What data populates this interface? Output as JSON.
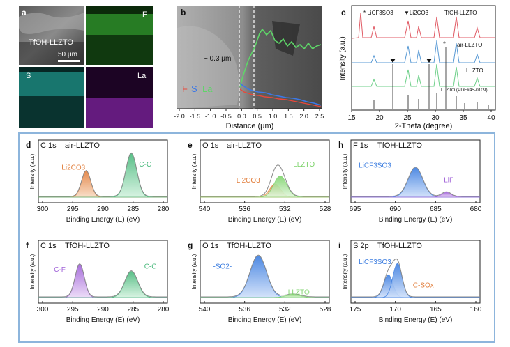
{
  "panel_a": {
    "letter": "a",
    "sample_label": "TfOH-LLZTO",
    "scale_bar": "50 μm",
    "maps": [
      {
        "element": "F",
        "color": "#3fbf3a"
      },
      {
        "element": "S",
        "color": "#29c6b8"
      },
      {
        "element": "La",
        "color": "#a030c8"
      }
    ]
  },
  "panel_b": {
    "letter": "b",
    "annotation": "~ 0.3 μm",
    "legend": [
      {
        "label": "F",
        "color": "#e8483a"
      },
      {
        "label": "S",
        "color": "#3c78e6"
      },
      {
        "label": "La",
        "color": "#5ed668"
      }
    ],
    "xlabel": "Distance (μm)",
    "xticks": [
      "-2.0",
      "-1.5",
      "-1.0",
      "-0.5",
      "0.0",
      "0.5",
      "1.0",
      "1.5",
      "2.0",
      "2.5"
    ]
  },
  "panel_c": {
    "letter": "c",
    "legend_star": "* LiCF3SO3",
    "legend_tri": "▼Li2CO3",
    "labels": [
      "TfOH-LLZTO",
      "air-LLZTO",
      "LLZTO",
      "LLZTO (PDF#45-0109)"
    ],
    "ylabel": "Intensity (a.u.)",
    "xlabel": "2-Theta (degree)",
    "xticks": [
      "15",
      "20",
      "25",
      "30",
      "35",
      "40"
    ]
  },
  "xps": {
    "ylabel": "Intensity (a.u.)",
    "xlabel": "Binding Energy (E) (eV)",
    "panels": [
      {
        "letter": "d",
        "core": "C 1s",
        "sample": "air-LLZTO",
        "xticks": [
          "300",
          "295",
          "290",
          "285",
          "280"
        ],
        "peaks": [
          "Li2CO3",
          "C-C"
        ]
      },
      {
        "letter": "e",
        "core": "O 1s",
        "sample": "air-LLZTO",
        "xticks": [
          "540",
          "536",
          "532",
          "528"
        ],
        "peaks": [
          "Li2CO3",
          "LLZTO"
        ]
      },
      {
        "letter": "h",
        "core": "F 1s",
        "sample": "TfOH-LLZTO",
        "xticks": [
          "695",
          "690",
          "685",
          "680"
        ],
        "peaks": [
          "LiCF3SO3",
          "LiF"
        ]
      },
      {
        "letter": "f",
        "core": "C 1s",
        "sample": "TfOH-LLZTO",
        "xticks": [
          "300",
          "295",
          "290",
          "285",
          "280"
        ],
        "peaks": [
          "C-F",
          "C-C"
        ]
      },
      {
        "letter": "g",
        "core": "O 1s",
        "sample": "TfOH-LLZTO",
        "xticks": [
          "540",
          "536",
          "532",
          "528"
        ],
        "peaks": [
          "-SO2-",
          "LLZTO"
        ]
      },
      {
        "letter": "i",
        "core": "S 2p",
        "sample": "TfOH-LLZTO",
        "xticks": [
          "175",
          "170",
          "165",
          "160"
        ],
        "peaks": [
          "LiCF3SO3",
          "C-SOx"
        ]
      }
    ]
  }
}
